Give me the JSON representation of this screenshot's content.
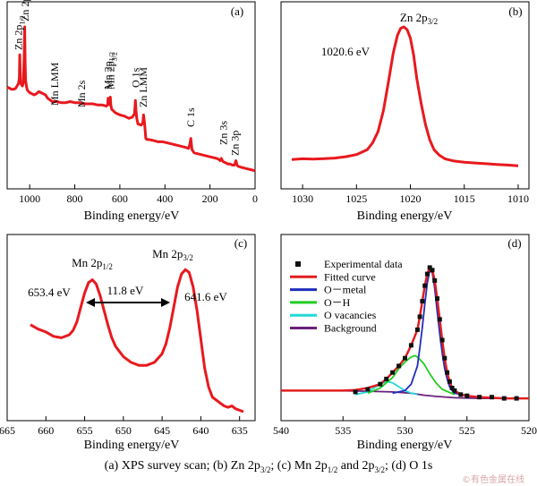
{
  "caption": {
    "a": "(a) XPS survey scan;",
    "b_pre": "(b) Zn 2p",
    "b_sub": "3/2",
    "b_post": ";",
    "c_pre": "(c) Mn 2p",
    "c_sub1": "1/2",
    "c_mid": " and 2p",
    "c_sub2": "3/2",
    "c_post": ";",
    "d": "(d) O 1s"
  },
  "watermark": "©有色金属在线",
  "chart_data": [
    {
      "panel": "(a)",
      "type": "line",
      "title": "",
      "xlabel": "Binding energy/eV",
      "ylabel": "",
      "xlim": [
        1100,
        0
      ],
      "xticks": [
        1000,
        800,
        600,
        400,
        200,
        0
      ],
      "color": "#e8191e",
      "series": [
        {
          "x": [
            1100,
            1090,
            1080,
            1070,
            1062,
            1056,
            1050,
            1046,
            1044,
            1042,
            1040,
            1036,
            1032,
            1028,
            1024,
            1022,
            1020,
            1018,
            1014,
            1010,
            1000,
            990,
            980,
            970,
            960,
            950,
            940,
            930,
            920,
            900,
            880,
            860,
            840,
            820,
            800,
            780,
            760,
            740,
            720,
            700,
            680,
            660,
            654,
            652,
            648,
            644,
            642,
            640,
            636,
            630,
            620,
            600,
            580,
            560,
            545,
            535,
            531,
            528,
            525,
            520,
            505,
            498,
            495,
            490,
            485,
            480,
            470,
            450,
            430,
            410,
            390,
            370,
            350,
            330,
            310,
            295,
            289,
            285,
            280,
            270,
            250,
            230,
            210,
            190,
            170,
            160,
            155,
            150,
            145,
            140,
            130,
            120,
            110,
            100,
            92,
            88,
            85,
            80,
            75,
            60,
            40,
            20,
            0
          ],
          "y": [
            76,
            75,
            74,
            74,
            75,
            77,
            79,
            84,
            105,
            90,
            80,
            78,
            77,
            80,
            107,
            130,
            98,
            82,
            76,
            73,
            71,
            70,
            69,
            70,
            72,
            71,
            70,
            69,
            66,
            63,
            63,
            62,
            62,
            63,
            62,
            62,
            61,
            61,
            61,
            60,
            60,
            59,
            60,
            66,
            61,
            60,
            67,
            60,
            56,
            55,
            53,
            51,
            50,
            48,
            49,
            52,
            64,
            55,
            48,
            43,
            42,
            44,
            51,
            43,
            30,
            29,
            29,
            28,
            27,
            27,
            26,
            25,
            24,
            23,
            22,
            21,
            25,
            30,
            20,
            17,
            16,
            15,
            14,
            13,
            12,
            11,
            10,
            12,
            10,
            9,
            8,
            7,
            7,
            6,
            6,
            8,
            10,
            6,
            5,
            4,
            3,
            2,
            1
          ]
        }
      ],
      "annotations": [
        {
          "pre": "Zn 2p",
          "sub": "1/2",
          "at": 1050
        },
        {
          "pre": "Zn 2p",
          "sub": "3/2",
          "at": 1021
        },
        {
          "pre": "Mn LMM",
          "sub": "",
          "at": 890
        },
        {
          "pre": "Mn 2s",
          "sub": "",
          "at": 770
        },
        {
          "pre": "Mn 2p",
          "sub": "1/2",
          "at": 654
        },
        {
          "pre": "Mn 2p",
          "sub": "3/2",
          "at": 641
        },
        {
          "pre": "O 1s",
          "sub": "",
          "at": 531
        },
        {
          "pre": "Zn LMM",
          "sub": "",
          "at": 497
        },
        {
          "pre": "C 1s",
          "sub": "",
          "at": 285
        },
        {
          "pre": "Zn 3s",
          "sub": "",
          "at": 140
        },
        {
          "pre": "Zn 3p",
          "sub": "",
          "at": 89
        }
      ]
    },
    {
      "panel": "(b)",
      "type": "line",
      "title": "",
      "xlabel": "Binding energy/eV",
      "ylabel": "",
      "xlim": [
        1032,
        1009
      ],
      "xticks": [
        1030,
        1025,
        1020,
        1015,
        1010
      ],
      "color": "#e8191e",
      "peak_label_pre": "Zn 2p",
      "peak_label_sub": "3/2",
      "peak_value_label": "1020.6 eV",
      "series": [
        {
          "x": [
            1031,
            1030,
            1029,
            1028,
            1027,
            1026,
            1025,
            1024,
            1023.5,
            1023,
            1022.5,
            1022,
            1021.6,
            1021.2,
            1020.9,
            1020.6,
            1020.3,
            1020,
            1019.7,
            1019.4,
            1019,
            1018.6,
            1018.2,
            1017.8,
            1017.3,
            1016.8,
            1016,
            1015,
            1014,
            1013,
            1012,
            1011,
            1010
          ],
          "y": [
            5,
            5.5,
            5.3,
            5.6,
            6,
            7,
            8.5,
            12,
            17,
            25,
            40,
            62,
            81,
            94,
            99,
            100,
            98,
            92,
            80,
            63,
            45,
            30,
            19,
            12,
            8,
            5.5,
            4,
            3,
            2.5,
            2,
            1.5,
            1,
            0.5
          ]
        }
      ]
    },
    {
      "panel": "(c)",
      "type": "line",
      "title": "",
      "xlabel": "Binding energy/eV",
      "ylabel": "",
      "xlim": [
        665,
        633
      ],
      "xticks": [
        665,
        660,
        655,
        650,
        645,
        640,
        635
      ],
      "color": "#e8191e",
      "peak1_label_pre": "Mn 2p",
      "peak1_label_sub": "1/2",
      "peak2_label_pre": "Mn 2p",
      "peak2_label_sub": "3/2",
      "peak1_value_label": "653.4 eV",
      "peak2_value_label": "641.6 eV",
      "splitting_label": "11.8 eV",
      "series": [
        {
          "x": [
            662,
            661,
            660,
            659,
            658,
            657,
            656.5,
            656,
            655.5,
            655,
            654.5,
            654,
            653.5,
            653,
            652.5,
            652,
            651.5,
            651,
            650,
            649,
            648,
            647,
            646,
            645,
            644.5,
            644,
            643.5,
            643,
            642.5,
            642,
            641.5,
            641,
            640.5,
            640,
            639.5,
            639,
            638.5,
            638,
            637.5,
            637,
            636.5,
            636,
            635.5,
            635,
            634.5
          ],
          "y": [
            60,
            57,
            55,
            52,
            51,
            53,
            56,
            62,
            72,
            82,
            89,
            91,
            88,
            80,
            70,
            60,
            51,
            45,
            38,
            34,
            32,
            32,
            34,
            40,
            47,
            58,
            72,
            86,
            95,
            98,
            96,
            86,
            70,
            50,
            30,
            17,
            10,
            8,
            6,
            4,
            3,
            4,
            2,
            1,
            0
          ]
        }
      ]
    },
    {
      "panel": "(d)",
      "type": "line",
      "title": "",
      "xlabel": "Binding energy/eV",
      "ylabel": "",
      "xlim": [
        540,
        520
      ],
      "xticks": [
        540,
        535,
        530,
        525,
        520
      ],
      "legend_position": "top-left",
      "series": [
        {
          "name": "Experimental data",
          "color": "#111111",
          "style": "squares",
          "x": [
            534,
            533,
            532,
            531.5,
            531,
            530.5,
            530,
            529.5,
            529,
            528.8,
            528.6,
            528.4,
            528.2,
            528,
            527.8,
            527.6,
            527.4,
            527.2,
            527,
            526.8,
            526.6,
            526.4,
            526.2,
            526,
            525.5,
            525,
            524,
            523,
            522,
            521
          ],
          "y": [
            2,
            4,
            8,
            12,
            17,
            22,
            28,
            38,
            50,
            60,
            72,
            84,
            93,
            98,
            96,
            88,
            74,
            58,
            42,
            28,
            17,
            10,
            5,
            3,
            0,
            -1,
            -2,
            -2,
            -3,
            -3
          ]
        },
        {
          "name": "Fitted curve",
          "color": "#e01e1e",
          "style": "line",
          "x": [
            540,
            537,
            535,
            534,
            533,
            532,
            531.5,
            531,
            530.5,
            530,
            529.5,
            529,
            528.8,
            528.6,
            528.4,
            528.2,
            528,
            527.8,
            527.6,
            527.4,
            527.2,
            527,
            526.8,
            526.6,
            526.4,
            526.2,
            526,
            525.5,
            525,
            524,
            522,
            520
          ],
          "y": [
            3,
            3,
            3,
            3.5,
            5,
            8,
            12,
            17,
            22,
            28,
            38,
            50,
            60,
            72,
            84,
            93,
            98,
            96,
            88,
            74,
            58,
            42,
            28,
            17,
            10,
            5,
            3,
            0,
            -1,
            -2,
            -3,
            -3
          ]
        },
        {
          "name": "O－metal",
          "color": "#1f2dbd",
          "style": "line",
          "x": [
            531,
            530,
            529.5,
            529,
            528.8,
            528.6,
            528.4,
            528.2,
            528,
            527.8,
            527.6,
            527.4,
            527.2,
            527,
            526.8,
            526.6,
            526.4,
            526.2,
            526,
            525.5
          ],
          "y": [
            1,
            3,
            8,
            22,
            36,
            52,
            70,
            86,
            96,
            94,
            82,
            64,
            47,
            32,
            20,
            12,
            6,
            3,
            1,
            0
          ]
        },
        {
          "name": "O－H",
          "color": "#22cc22",
          "style": "line",
          "x": [
            533,
            532,
            531,
            530.5,
            530,
            529.5,
            529.2,
            529,
            528.5,
            528,
            527.5,
            527,
            526.5,
            526
          ],
          "y": [
            1,
            5,
            13,
            20,
            25,
            29,
            30,
            29,
            24,
            16,
            9,
            4,
            2,
            0
          ]
        },
        {
          "name": "O vacancies",
          "color": "#22d8d8",
          "style": "line",
          "x": [
            534,
            533,
            532.5,
            532,
            531.5,
            531,
            530.5,
            530,
            529.5,
            529
          ],
          "y": [
            0,
            2,
            5,
            8,
            10,
            9,
            6,
            3,
            1,
            0
          ]
        },
        {
          "name": "Background",
          "color": "#6b1f7a",
          "style": "line",
          "x": [
            540,
            536,
            533,
            531,
            529.5,
            528.5,
            527.5,
            526,
            524,
            522,
            520
          ],
          "y": [
            3,
            3,
            2.5,
            2,
            1,
            -0.5,
            -1.5,
            -2.5,
            -3,
            -3,
            -3
          ]
        }
      ]
    }
  ]
}
